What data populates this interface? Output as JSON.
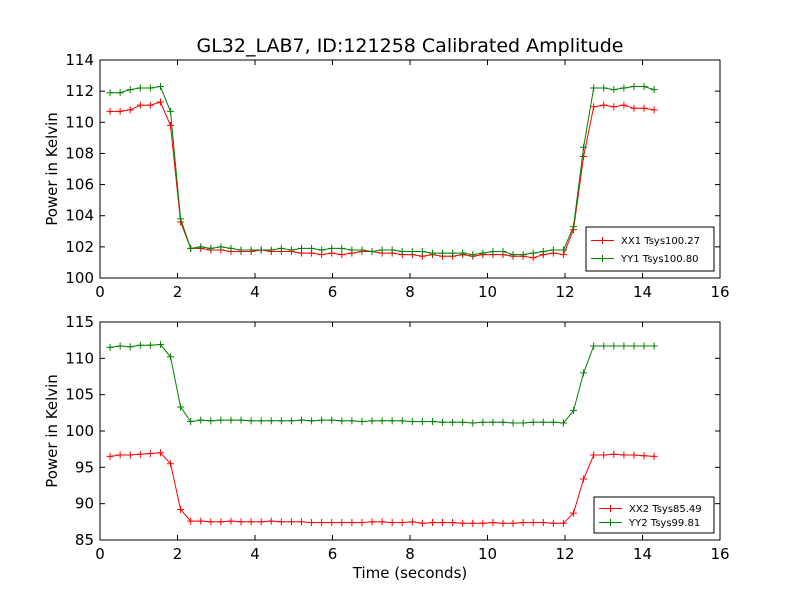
{
  "figure_title": "GL32_LAB7, ID:121258 Calibrated Amplitude",
  "chart_data": [
    {
      "type": "line",
      "xlabel": "",
      "ylabel": "Power in Kelvin",
      "xlim": [
        0,
        16
      ],
      "ylim": [
        100,
        114
      ],
      "xticks": [
        0,
        2,
        4,
        6,
        8,
        10,
        12,
        14,
        16
      ],
      "yticks": [
        100,
        102,
        104,
        106,
        108,
        110,
        112,
        114
      ],
      "grid": false,
      "legend_position": "lower-right",
      "x": [
        0.26,
        0.52,
        0.78,
        1.04,
        1.3,
        1.56,
        1.82,
        2.08,
        2.34,
        2.6,
        2.86,
        3.12,
        3.38,
        3.64,
        3.9,
        4.16,
        4.42,
        4.68,
        4.94,
        5.2,
        5.46,
        5.72,
        5.98,
        6.24,
        6.5,
        6.76,
        7.02,
        7.28,
        7.54,
        7.8,
        8.06,
        8.32,
        8.58,
        8.84,
        9.1,
        9.36,
        9.62,
        9.88,
        10.14,
        10.4,
        10.66,
        10.92,
        11.18,
        11.44,
        11.7,
        11.96,
        12.22,
        12.48,
        12.74,
        13.0,
        13.26,
        13.52,
        13.78,
        14.04,
        14.3
      ],
      "series": [
        {
          "name": "XX1 Tsys100.27",
          "color": "#ff0000",
          "values": [
            110.7,
            110.7,
            110.8,
            111.1,
            111.1,
            111.3,
            109.8,
            103.6,
            101.9,
            101.9,
            101.8,
            101.8,
            101.7,
            101.7,
            101.7,
            101.8,
            101.7,
            101.7,
            101.7,
            101.6,
            101.6,
            101.5,
            101.6,
            101.5,
            101.6,
            101.7,
            101.7,
            101.6,
            101.6,
            101.5,
            101.5,
            101.4,
            101.5,
            101.4,
            101.4,
            101.5,
            101.4,
            101.5,
            101.5,
            101.5,
            101.4,
            101.4,
            101.3,
            101.5,
            101.6,
            101.5,
            103.1,
            107.8,
            111.0,
            111.1,
            111.0,
            111.1,
            110.9,
            110.9,
            110.8
          ]
        },
        {
          "name": "YY1 Tsys100.80",
          "color": "#008000",
          "values": [
            111.9,
            111.9,
            112.1,
            112.2,
            112.2,
            112.3,
            110.7,
            103.8,
            101.9,
            102.0,
            101.9,
            102.0,
            101.9,
            101.8,
            101.8,
            101.8,
            101.8,
            101.9,
            101.8,
            101.9,
            101.9,
            101.8,
            101.9,
            101.9,
            101.8,
            101.8,
            101.7,
            101.8,
            101.8,
            101.7,
            101.7,
            101.7,
            101.6,
            101.6,
            101.6,
            101.6,
            101.5,
            101.6,
            101.7,
            101.7,
            101.5,
            101.5,
            101.6,
            101.7,
            101.8,
            101.8,
            103.3,
            108.4,
            112.2,
            112.2,
            112.1,
            112.2,
            112.3,
            112.3,
            112.1
          ]
        }
      ]
    },
    {
      "type": "line",
      "xlabel": "Time (seconds)",
      "ylabel": "Power in Kelvin",
      "xlim": [
        0,
        16
      ],
      "ylim": [
        85,
        115
      ],
      "xticks": [
        0,
        2,
        4,
        6,
        8,
        10,
        12,
        14,
        16
      ],
      "yticks": [
        85,
        90,
        95,
        100,
        105,
        110,
        115
      ],
      "grid": false,
      "legend_position": "lower-right",
      "x": [
        0.26,
        0.52,
        0.78,
        1.04,
        1.3,
        1.56,
        1.82,
        2.08,
        2.34,
        2.6,
        2.86,
        3.12,
        3.38,
        3.64,
        3.9,
        4.16,
        4.42,
        4.68,
        4.94,
        5.2,
        5.46,
        5.72,
        5.98,
        6.24,
        6.5,
        6.76,
        7.02,
        7.28,
        7.54,
        7.8,
        8.06,
        8.32,
        8.58,
        8.84,
        9.1,
        9.36,
        9.62,
        9.88,
        10.14,
        10.4,
        10.66,
        10.92,
        11.18,
        11.44,
        11.7,
        11.96,
        12.22,
        12.48,
        12.74,
        13.0,
        13.26,
        13.52,
        13.78,
        14.04,
        14.3
      ],
      "series": [
        {
          "name": "XX2 Tsys85.49",
          "color": "#ff0000",
          "values": [
            96.5,
            96.7,
            96.7,
            96.8,
            96.9,
            97.0,
            95.5,
            89.2,
            87.6,
            87.6,
            87.5,
            87.5,
            87.6,
            87.5,
            87.5,
            87.5,
            87.6,
            87.5,
            87.5,
            87.5,
            87.4,
            87.4,
            87.4,
            87.4,
            87.4,
            87.4,
            87.5,
            87.5,
            87.4,
            87.4,
            87.5,
            87.3,
            87.4,
            87.4,
            87.4,
            87.3,
            87.3,
            87.3,
            87.4,
            87.3,
            87.3,
            87.4,
            87.4,
            87.4,
            87.3,
            87.3,
            88.7,
            93.4,
            96.7,
            96.7,
            96.8,
            96.7,
            96.7,
            96.6,
            96.5
          ]
        },
        {
          "name": "YY2 Tsys99.81",
          "color": "#008000",
          "values": [
            111.5,
            111.7,
            111.6,
            111.8,
            111.8,
            111.9,
            110.2,
            103.3,
            101.3,
            101.5,
            101.4,
            101.5,
            101.5,
            101.5,
            101.4,
            101.4,
            101.4,
            101.4,
            101.4,
            101.5,
            101.4,
            101.5,
            101.5,
            101.4,
            101.4,
            101.3,
            101.4,
            101.4,
            101.4,
            101.4,
            101.3,
            101.3,
            101.3,
            101.2,
            101.2,
            101.2,
            101.1,
            101.2,
            101.2,
            101.2,
            101.1,
            101.1,
            101.2,
            101.2,
            101.2,
            101.1,
            102.8,
            108.0,
            111.7,
            111.7,
            111.7,
            111.7,
            111.7,
            111.7,
            111.7
          ]
        }
      ]
    }
  ]
}
